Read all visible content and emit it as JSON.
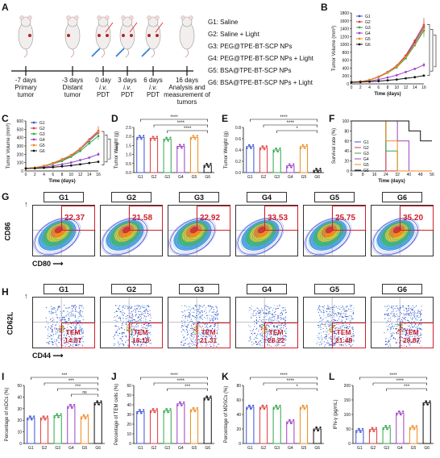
{
  "panels": [
    "A",
    "B",
    "C",
    "D",
    "E",
    "F",
    "G",
    "H",
    "I",
    "J",
    "K",
    "L"
  ],
  "timeline": {
    "events": [
      {
        "day": "-7 days",
        "desc": "Primary\ntumor"
      },
      {
        "day": "-3 days",
        "desc": "Distant\ntumor"
      },
      {
        "day": "0 day",
        "desc": "i.v.\nPDT"
      },
      {
        "day": "3 days",
        "desc": "i.v.\nPDT"
      },
      {
        "day": "6 days",
        "desc": "i.v.\nPDT"
      },
      {
        "day": "16 days",
        "desc": "Analysis and\nmeasurement of\ntumors"
      }
    ]
  },
  "groups": [
    {
      "id": "G1",
      "label": "G1: Saline",
      "color": "#3b53d6"
    },
    {
      "id": "G2",
      "label": "G2: Saline + Light",
      "color": "#e23b3b"
    },
    {
      "id": "G3",
      "label": "G3: PEG@TPE-BT-SCP NPs",
      "color": "#2fa84a"
    },
    {
      "id": "G4",
      "label": "G4: PEG@TPE-BT-SCP NPs + Light",
      "color": "#9b41c7"
    },
    {
      "id": "G5",
      "label": "G5: BSA@TPE-BT-SCP NPs",
      "color": "#f08a1c"
    },
    {
      "id": "G6",
      "label": "G6: BSA@TPE-BT-SCP NPs + Light",
      "color": "#111111"
    }
  ],
  "B": {
    "ylabel": "Tumor Volume (mm³)",
    "xlabel": "Time (days)",
    "yticks": [
      "0",
      "200",
      "400",
      "600",
      "800",
      "1000",
      "1200",
      "1400",
      "1600",
      "1800"
    ],
    "xticks": [
      "0",
      "2",
      "4",
      "6",
      "8",
      "10",
      "12",
      "14",
      "16"
    ],
    "sig": "****"
  },
  "C": {
    "ylabel": "Tumor Volume (mm³)",
    "xlabel": "Time (days)",
    "yticks": [
      "0",
      "100",
      "200",
      "300",
      "400",
      "500",
      "600"
    ],
    "xticks": [
      "0",
      "2",
      "4",
      "6",
      "8",
      "10",
      "12",
      "14",
      "16"
    ],
    "sig": "****"
  },
  "D": {
    "ylabel": "Tumor Weight (g)",
    "yticks": [
      "0.0",
      "0.5",
      "1.0",
      "1.5",
      "2.0",
      "2.5"
    ],
    "sig": "****"
  },
  "E": {
    "ylabel": "Tumor Weight (g)",
    "yticks": [
      "0.0",
      "0.2",
      "0.4",
      "0.6",
      "0.8"
    ],
    "sig": "****",
    "sig2": "*"
  },
  "F": {
    "ylabel": "Survival rate (%)",
    "xlabel": "Time (days)",
    "yticks": [
      "0",
      "20",
      "40",
      "60",
      "80",
      "100"
    ],
    "xticks": [
      "0",
      "8",
      "16",
      "24",
      "32",
      "40",
      "48",
      "56"
    ]
  },
  "G": {
    "headers": [
      "G1",
      "G2",
      "G3",
      "G4",
      "G5",
      "G6"
    ],
    "values": [
      "22.37",
      "21.58",
      "22.92",
      "33.53",
      "25.75",
      "35.20"
    ],
    "ylabel": "CD86",
    "xlabel": "CD80"
  },
  "H": {
    "headers": [
      "G1",
      "G2",
      "G3",
      "G4",
      "G5",
      "G6"
    ],
    "values": [
      "14.57",
      "18.18",
      "21.31",
      "28.22",
      "21.48",
      "29.87"
    ],
    "tag": "TEM",
    "ylabel": "CD62L",
    "xlabel": "CD44"
  },
  "I": {
    "ylabel": "Percentage of mDCs (%)",
    "yticks": [
      "0",
      "10",
      "20",
      "30",
      "40",
      "50"
    ],
    "sig": "***",
    "ns": "ns"
  },
  "J": {
    "ylabel": "Percentage of TEM cells (%)",
    "yticks": [
      "0",
      "10",
      "20",
      "30",
      "40",
      "50",
      "60"
    ],
    "sig": "****",
    "sig2": "***"
  },
  "K": {
    "ylabel": "Percentage of MDSCs (%)",
    "yticks": [
      "0",
      "20",
      "40",
      "60",
      "80"
    ],
    "sig": "****",
    "sig2": "*"
  },
  "L": {
    "ylabel": "IFN-γ (pg/mL)",
    "yticks": [
      "0",
      "50",
      "100",
      "150",
      "200"
    ],
    "sig": "****",
    "sig2": "***"
  },
  "chart_data": [
    {
      "type": "bar",
      "panel": "D",
      "categories": [
        "G1",
        "G2",
        "G3",
        "G4",
        "G5",
        "G6"
      ],
      "values": [
        1.95,
        1.9,
        1.85,
        1.45,
        1.95,
        0.4
      ],
      "ylim": [
        0,
        2.5
      ],
      "ylabel": "Tumor Weight (g)"
    },
    {
      "type": "bar",
      "panel": "E",
      "categories": [
        "G1",
        "G2",
        "G3",
        "G4",
        "G5",
        "G6"
      ],
      "values": [
        0.46,
        0.44,
        0.4,
        0.12,
        0.46,
        0.04
      ],
      "ylim": [
        0,
        0.8
      ],
      "ylabel": "Tumor Weight (g)"
    },
    {
      "type": "bar",
      "panel": "I",
      "categories": [
        "G1",
        "G2",
        "G3",
        "G4",
        "G5",
        "G6"
      ],
      "values": [
        22,
        22,
        24,
        32,
        23,
        35
      ],
      "ylim": [
        0,
        50
      ],
      "ylabel": "Percentage of mDCs (%)"
    },
    {
      "type": "bar",
      "panel": "J",
      "categories": [
        "G1",
        "G2",
        "G3",
        "G4",
        "G5",
        "G6"
      ],
      "values": [
        33,
        34,
        34,
        41,
        35,
        47
      ],
      "ylim": [
        0,
        60
      ],
      "ylabel": "Percentage of TEM cells (%)"
    },
    {
      "type": "bar",
      "panel": "K",
      "categories": [
        "G1",
        "G2",
        "G3",
        "G4",
        "G5",
        "G6"
      ],
      "values": [
        50,
        50,
        50,
        30,
        50,
        20
      ],
      "ylim": [
        0,
        80
      ],
      "ylabel": "Percentage of MDSCs (%)"
    },
    {
      "type": "bar",
      "panel": "L",
      "categories": [
        "G1",
        "G2",
        "G3",
        "G4",
        "G5",
        "G6"
      ],
      "values": [
        45,
        48,
        55,
        105,
        55,
        140
      ],
      "ylim": [
        0,
        200
      ],
      "ylabel": "IFN-γ (pg/mL)"
    },
    {
      "type": "line",
      "panel": "B",
      "x": [
        0,
        2,
        4,
        6,
        8,
        10,
        12,
        14,
        16
      ],
      "ylim": [
        0,
        1800
      ],
      "series": [
        {
          "name": "G1",
          "values": [
            40,
            60,
            100,
            180,
            300,
            450,
            700,
            1050,
            1450
          ]
        },
        {
          "name": "G2",
          "values": [
            40,
            60,
            100,
            180,
            300,
            460,
            720,
            1100,
            1500
          ]
        },
        {
          "name": "G3",
          "values": [
            40,
            55,
            95,
            170,
            280,
            420,
            650,
            980,
            1350
          ]
        },
        {
          "name": "G4",
          "values": [
            40,
            50,
            70,
            110,
            160,
            220,
            300,
            380,
            480
          ]
        },
        {
          "name": "G5",
          "values": [
            40,
            60,
            100,
            170,
            290,
            440,
            680,
            1000,
            1400
          ]
        },
        {
          "name": "G6",
          "values": [
            40,
            45,
            55,
            70,
            90,
            110,
            140,
            170,
            210
          ]
        }
      ]
    },
    {
      "type": "line",
      "panel": "C",
      "x": [
        0,
        2,
        4,
        6,
        8,
        10,
        12,
        14,
        16
      ],
      "ylim": [
        0,
        600
      ],
      "series": [
        {
          "name": "G1",
          "values": [
            30,
            40,
            60,
            90,
            130,
            180,
            260,
            360,
            460
          ]
        },
        {
          "name": "G2",
          "values": [
            30,
            40,
            60,
            95,
            140,
            190,
            270,
            380,
            480
          ]
        },
        {
          "name": "G3",
          "values": [
            30,
            40,
            55,
            85,
            120,
            170,
            240,
            330,
            420
          ]
        },
        {
          "name": "G4",
          "values": [
            30,
            35,
            45,
            60,
            80,
            100,
            130,
            160,
            200
          ]
        },
        {
          "name": "G5",
          "values": [
            30,
            40,
            60,
            90,
            135,
            185,
            265,
            370,
            470
          ]
        },
        {
          "name": "G6",
          "values": [
            30,
            32,
            38,
            45,
            55,
            65,
            80,
            95,
            110
          ]
        }
      ]
    },
    {
      "type": "line",
      "panel": "F",
      "x": [
        0,
        8,
        16,
        24,
        32,
        40,
        48,
        56
      ],
      "ylim": [
        0,
        100
      ],
      "series": [
        {
          "name": "G1",
          "values": [
            100,
            100,
            100,
            0,
            0,
            0,
            0,
            0
          ]
        },
        {
          "name": "G2",
          "values": [
            100,
            100,
            100,
            0,
            0,
            0,
            0,
            0
          ]
        },
        {
          "name": "G3",
          "values": [
            100,
            100,
            100,
            40,
            0,
            0,
            0,
            0
          ]
        },
        {
          "name": "G4",
          "values": [
            100,
            100,
            100,
            100,
            60,
            0,
            0,
            0
          ]
        },
        {
          "name": "G5",
          "values": [
            100,
            100,
            100,
            60,
            0,
            0,
            0,
            0
          ]
        },
        {
          "name": "G6",
          "values": [
            100,
            100,
            100,
            100,
            100,
            80,
            60,
            60
          ]
        }
      ]
    }
  ]
}
